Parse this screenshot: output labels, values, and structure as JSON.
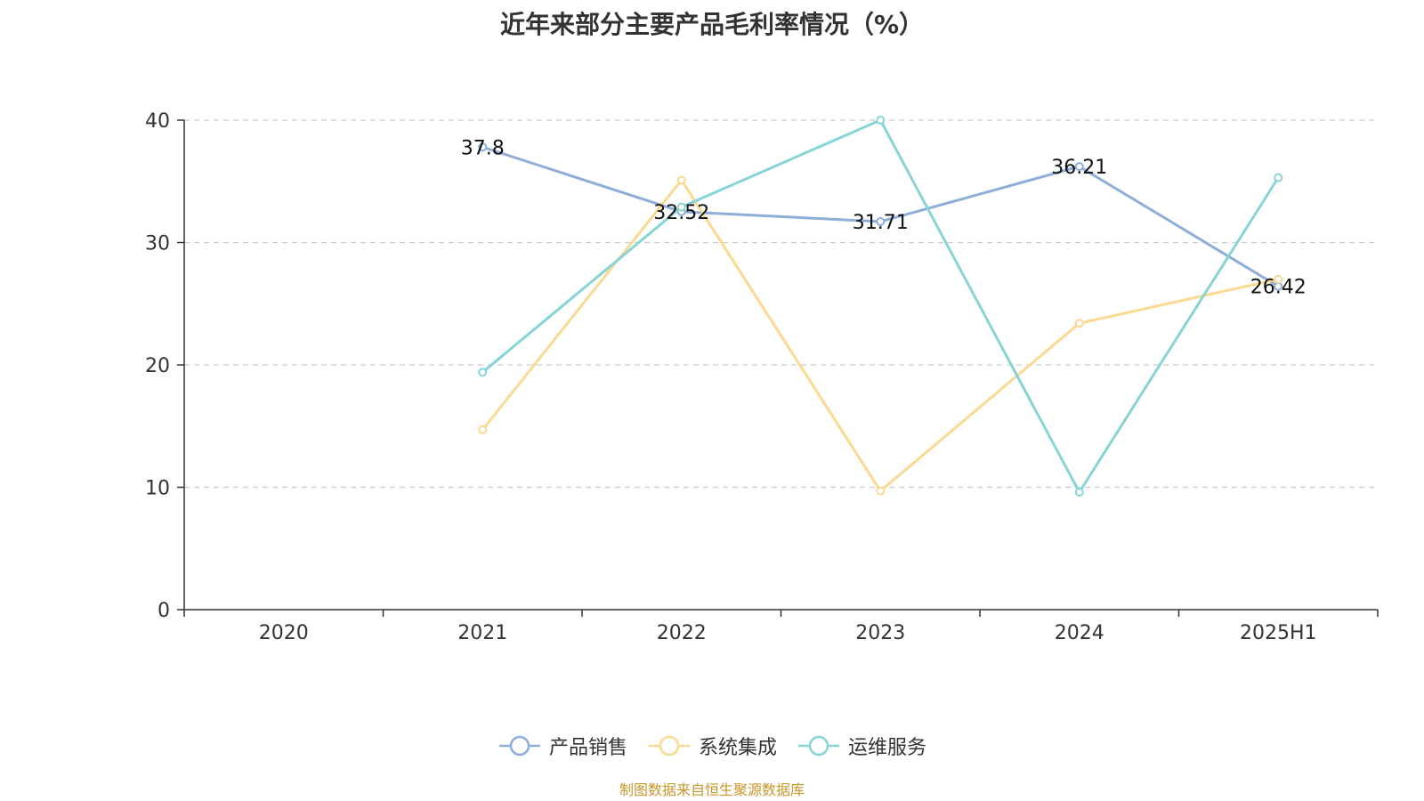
{
  "chart_data": {
    "type": "line",
    "title": "近年来部分主要产品毛利率情况（%）",
    "categories": [
      "2020",
      "2021",
      "2022",
      "2023",
      "2024",
      "2025H1"
    ],
    "ylim": [
      0,
      40
    ],
    "yticks": [
      0,
      10,
      20,
      30,
      40
    ],
    "grid": true,
    "legend_position": "bottom",
    "series": [
      {
        "name": "产品销售",
        "color": "#8eaed9",
        "values": [
          null,
          37.8,
          32.52,
          31.71,
          36.21,
          26.42
        ],
        "labels": [
          null,
          "37.8",
          "32.52",
          "31.71",
          "36.21",
          "26.42"
        ]
      },
      {
        "name": "系统集成",
        "color": "#fbd992",
        "values": [
          null,
          14.7,
          35.1,
          9.7,
          23.4,
          27.0
        ]
      },
      {
        "name": "运维服务",
        "color": "#86d4d6",
        "values": [
          null,
          19.4,
          32.9,
          40.0,
          9.6,
          35.3
        ]
      }
    ]
  },
  "source": "制图数据来自恒生聚源数据库"
}
